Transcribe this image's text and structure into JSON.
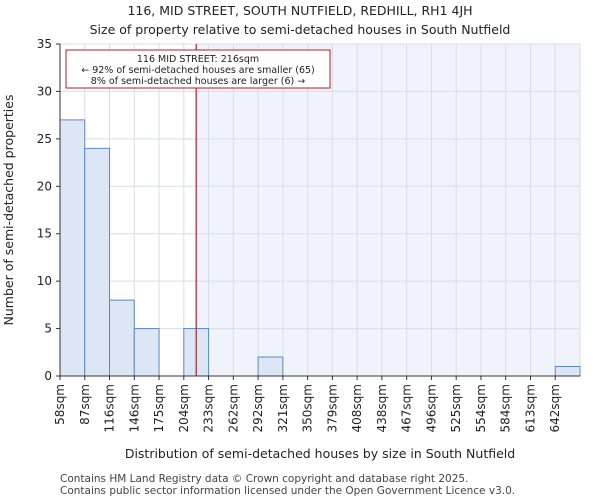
{
  "header": {
    "title_line1": "116, MID STREET, SOUTH NUTFIELD, REDHILL, RH1 4JH",
    "title_line2": "Size of property relative to semi-detached houses in South Nutfield"
  },
  "footer": {
    "line1": "Contains HM Land Registry data © Crown copyright and database right 2025.",
    "line2": "Contains public sector information licensed under the Open Government Licence v3.0."
  },
  "chart_data": {
    "type": "bar",
    "title": "116, MID STREET, SOUTH NUTFIELD, REDHILL, RH1 4JH",
    "subtitle": "Size of property relative to semi-detached houses in South Nutfield",
    "xlabel": "Distribution of semi-detached houses by size in South Nutfield",
    "ylabel": "Number of semi-detached properties",
    "categories": [
      "58sqm",
      "87sqm",
      "116sqm",
      "146sqm",
      "175sqm",
      "204sqm",
      "233sqm",
      "262sqm",
      "292sqm",
      "321sqm",
      "350sqm",
      "379sqm",
      "408sqm",
      "438sqm",
      "467sqm",
      "496sqm",
      "525sqm",
      "554sqm",
      "584sqm",
      "613sqm",
      "642sqm"
    ],
    "values": [
      27,
      24,
      8,
      5,
      0,
      5,
      0,
      0,
      2,
      0,
      0,
      0,
      0,
      0,
      0,
      0,
      0,
      0,
      0,
      0,
      1
    ],
    "ylim": [
      0,
      35
    ],
    "yticks": [
      0,
      5,
      10,
      15,
      20,
      25,
      30,
      35
    ],
    "grid": true,
    "marker": {
      "bin_position": 5.5,
      "annotation": [
        "116 MID STREET: 216sqm",
        "← 92% of semi-detached houses are smaller (65)",
        "8% of semi-detached houses are larger (6) →"
      ]
    },
    "colors": {
      "bar_fill": "#dce6f5",
      "bar_edge": "#5b88c4",
      "marker": "#b21e28",
      "grid": "#d8dde6",
      "highlight_bg": "#f0f3fb"
    }
  }
}
